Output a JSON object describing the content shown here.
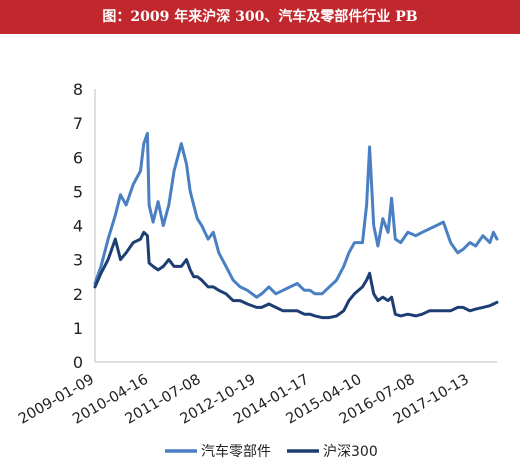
{
  "title": "图：2009 年来沪深 300、汽车及零部件行业 PB",
  "colors": {
    "title_bg": "#c0282d",
    "title_text": "#ffffff"
  },
  "chart_data": {
    "type": "line",
    "ylim": [
      0,
      8
    ],
    "yticks": [
      0,
      1,
      2,
      3,
      4,
      5,
      6,
      7,
      8
    ],
    "x_range": [
      "2009-01-09",
      "2018-06-01"
    ],
    "xtick_labels": [
      "2009-01-09",
      "2010-04-16",
      "2011-07-08",
      "2012-10-19",
      "2014-01-17",
      "2015-04-10",
      "2016-07-08",
      "2017-10-13"
    ],
    "grid": false,
    "legend_position": "bottom",
    "series": [
      {
        "name": "汽车零部件",
        "color": "#4a7fc1",
        "x": [
          "2009-01-09",
          "2009-03-01",
          "2009-05-01",
          "2009-07-01",
          "2009-08-15",
          "2009-10-01",
          "2009-12-01",
          "2010-02-01",
          "2010-03-01",
          "2010-04-01",
          "2010-04-16",
          "2010-05-20",
          "2010-07-01",
          "2010-08-15",
          "2010-10-01",
          "2010-11-15",
          "2011-01-15",
          "2011-03-01",
          "2011-04-01",
          "2011-05-01",
          "2011-06-01",
          "2011-07-08",
          "2011-09-01",
          "2011-10-15",
          "2011-12-01",
          "2012-02-01",
          "2012-04-01",
          "2012-06-01",
          "2012-08-01",
          "2012-10-19",
          "2012-12-01",
          "2013-02-01",
          "2013-04-01",
          "2013-06-01",
          "2013-08-01",
          "2013-10-01",
          "2013-12-01",
          "2014-01-17",
          "2014-03-01",
          "2014-05-01",
          "2014-07-01",
          "2014-09-01",
          "2014-11-01",
          "2014-12-15",
          "2015-02-01",
          "2015-04-10",
          "2015-05-15",
          "2015-06-10",
          "2015-07-15",
          "2015-08-20",
          "2015-10-01",
          "2015-11-15",
          "2015-12-15",
          "2016-01-15",
          "2016-03-01",
          "2016-05-01",
          "2016-07-08",
          "2016-09-01",
          "2016-11-01",
          "2017-01-01",
          "2017-03-01",
          "2017-05-01",
          "2017-07-01",
          "2017-08-15",
          "2017-10-13",
          "2017-12-01",
          "2018-02-01",
          "2018-04-01",
          "2018-05-01",
          "2018-06-01"
        ],
        "values": [
          2.3,
          2.8,
          3.6,
          4.3,
          4.9,
          4.6,
          5.2,
          5.6,
          6.4,
          6.7,
          4.6,
          4.1,
          4.7,
          4.0,
          4.6,
          5.6,
          6.4,
          5.8,
          5.0,
          4.6,
          4.2,
          4.0,
          3.6,
          3.8,
          3.2,
          2.8,
          2.4,
          2.2,
          2.1,
          1.9,
          2.0,
          2.2,
          2.0,
          2.1,
          2.2,
          2.3,
          2.1,
          2.1,
          2.0,
          2.0,
          2.2,
          2.4,
          2.8,
          3.2,
          3.5,
          3.5,
          4.6,
          6.3,
          4.0,
          3.4,
          4.2,
          3.8,
          4.8,
          3.6,
          3.5,
          3.8,
          3.7,
          3.8,
          3.9,
          4.0,
          4.1,
          3.5,
          3.2,
          3.3,
          3.5,
          3.4,
          3.7,
          3.5,
          3.8,
          3.6
        ]
      },
      {
        "name": "沪深300",
        "color": "#1d3e73",
        "x": [
          "2009-01-09",
          "2009-03-01",
          "2009-05-01",
          "2009-07-01",
          "2009-08-15",
          "2009-10-01",
          "2009-12-01",
          "2010-02-01",
          "2010-03-01",
          "2010-04-01",
          "2010-04-16",
          "2010-05-20",
          "2010-07-01",
          "2010-08-15",
          "2010-10-01",
          "2010-11-15",
          "2011-01-15",
          "2011-03-01",
          "2011-04-01",
          "2011-05-01",
          "2011-06-01",
          "2011-07-08",
          "2011-09-01",
          "2011-10-15",
          "2011-12-01",
          "2012-02-01",
          "2012-04-01",
          "2012-06-01",
          "2012-08-01",
          "2012-10-19",
          "2012-12-01",
          "2013-02-01",
          "2013-04-01",
          "2013-06-01",
          "2013-08-01",
          "2013-10-01",
          "2013-12-01",
          "2014-01-17",
          "2014-03-01",
          "2014-05-01",
          "2014-07-01",
          "2014-09-01",
          "2014-11-01",
          "2014-12-15",
          "2015-02-01",
          "2015-04-10",
          "2015-05-15",
          "2015-06-10",
          "2015-07-15",
          "2015-08-20",
          "2015-10-01",
          "2015-11-15",
          "2015-12-15",
          "2016-01-15",
          "2016-03-01",
          "2016-05-01",
          "2016-07-08",
          "2016-09-01",
          "2016-11-01",
          "2017-01-01",
          "2017-03-01",
          "2017-05-01",
          "2017-07-01",
          "2017-08-15",
          "2017-10-13",
          "2017-12-01",
          "2018-02-01",
          "2018-04-01",
          "2018-05-01",
          "2018-06-01"
        ],
        "values": [
          2.2,
          2.6,
          3.0,
          3.6,
          3.0,
          3.2,
          3.5,
          3.6,
          3.8,
          3.7,
          2.9,
          2.8,
          2.7,
          2.8,
          3.0,
          2.8,
          2.8,
          3.0,
          2.7,
          2.5,
          2.5,
          2.4,
          2.2,
          2.2,
          2.1,
          2.0,
          1.8,
          1.8,
          1.7,
          1.6,
          1.6,
          1.7,
          1.6,
          1.5,
          1.5,
          1.5,
          1.4,
          1.4,
          1.35,
          1.3,
          1.3,
          1.35,
          1.5,
          1.8,
          2.0,
          2.2,
          2.4,
          2.6,
          2.0,
          1.8,
          1.9,
          1.8,
          1.9,
          1.4,
          1.35,
          1.4,
          1.35,
          1.4,
          1.5,
          1.5,
          1.5,
          1.5,
          1.6,
          1.6,
          1.5,
          1.55,
          1.6,
          1.65,
          1.7,
          1.75
        ]
      }
    ]
  }
}
